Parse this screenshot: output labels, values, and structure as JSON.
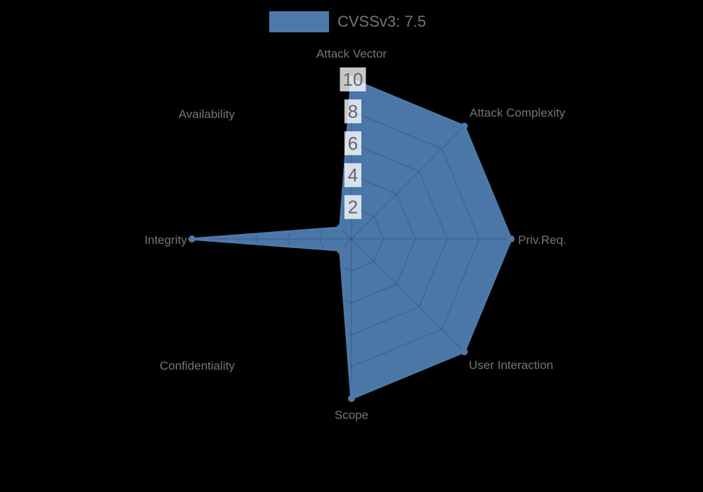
{
  "chart_data": {
    "type": "radar",
    "title": "",
    "legend": {
      "label": "CVSSv3: 7.5",
      "position": "top"
    },
    "axes": [
      "Attack Vector",
      "Attack Complexity",
      "Priv.Req.",
      "User Interaction",
      "Scope",
      "Confidentiality",
      "Integrity",
      "Availability"
    ],
    "series": [
      {
        "name": "CVSSv3: 7.5",
        "values": [
          10,
          10,
          10,
          10,
          10,
          1,
          10,
          1
        ]
      }
    ],
    "scale": {
      "min": 0,
      "max": 10,
      "ticks": [
        2,
        4,
        6,
        8,
        10
      ],
      "grid": true
    },
    "colors": {
      "fill": "#4a76a8",
      "border": "#4d79a8",
      "marker": "#4d79a8",
      "grid_line": "rgba(0,0,0,0.13)",
      "tick_backdrop": "rgba(255,255,255,0.78)",
      "tick_text": "#666666",
      "axis_label_text": "#757575",
      "legend_text": "#757575",
      "background": "#000000"
    }
  }
}
